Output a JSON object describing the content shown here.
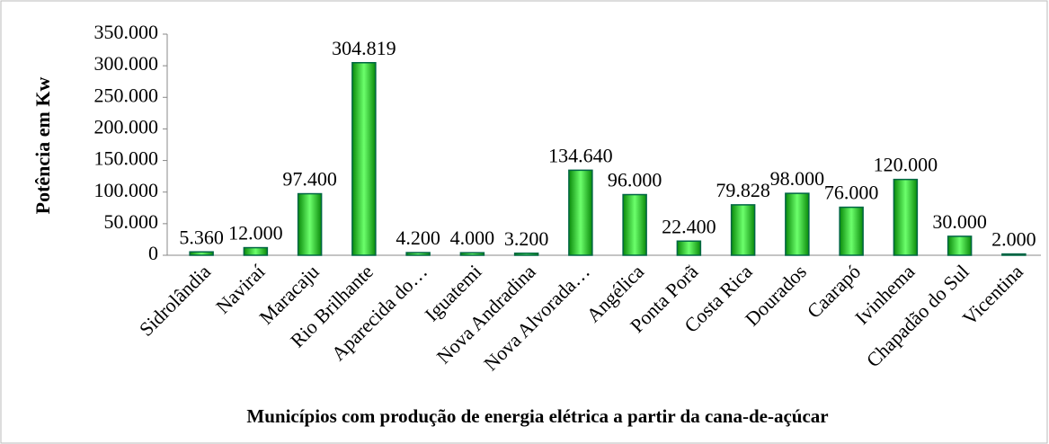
{
  "chart_data": {
    "type": "bar",
    "title": "Municípios com produção de energia elétrica a partir da cana-de-açúcar",
    "y_label": "Potência em Kw",
    "categories": [
      "Sidrolândia",
      "Naviraí",
      "Maracaju",
      "Rio Brilhante",
      "Aparecida do…",
      "Iguatemi",
      "Nova Andradina",
      "Nova Alvorada…",
      "Angélica",
      "Ponta Porã",
      "Costa Rica",
      "Dourados",
      "Caarapó",
      "Ivinhema",
      "Chapadão do Sul",
      "Vicentina"
    ],
    "values": [
      5360,
      12000,
      97400,
      304819,
      4200,
      4000,
      3200,
      134640,
      96000,
      22400,
      79828,
      98000,
      76000,
      120000,
      30000,
      2000
    ],
    "value_labels": [
      "5.360",
      "12.000",
      "97.400",
      "304.819",
      "4.200",
      "4.000",
      "3.200",
      "134.640",
      "96.000",
      "22.400",
      "79.828",
      "98.000",
      "76.000",
      "120.000",
      "30.000",
      "2.000"
    ],
    "color": "#22cc22",
    "ylim": [
      0,
      350000
    ],
    "yticks": [
      0,
      {
        "value": 50000,
        "label": "50.000"
      },
      {
        "value": 100000,
        "label": "100.000"
      },
      {
        "value": 150000,
        "label": "150.000"
      },
      {
        "value": 200000,
        "label": "200.000"
      },
      {
        "value": 250000,
        "label": "250.000"
      },
      {
        "value": 300000,
        "label": "300.000"
      },
      {
        "value": 350000,
        "label": "350.000"
      }
    ]
  }
}
